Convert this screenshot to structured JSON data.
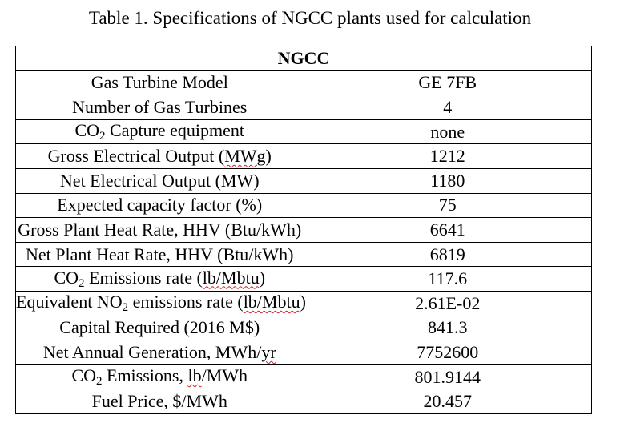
{
  "caption": "Table 1. Specifications of NGCC plants used for calculation",
  "table": {
    "header": "NGCC",
    "rows": [
      {
        "label": "Gas Turbine Model",
        "value": "GE 7FB"
      },
      {
        "label": "Number of Gas Turbines",
        "value": "4"
      },
      {
        "label_pre": "CO",
        "label_sub": "2",
        "label_post": " Capture equipment",
        "value": "none"
      },
      {
        "label_pre": "Gross Electrical Output (",
        "label_mark": "MWg",
        "label_post": ")",
        "value": "1212"
      },
      {
        "label": "Net Electrical Output (MW)",
        "value": "1180"
      },
      {
        "label": "Expected capacity factor (%)",
        "value": "75"
      },
      {
        "label": "Gross Plant Heat Rate, HHV (Btu/kWh)",
        "value": "6641"
      },
      {
        "label": "Net Plant Heat Rate, HHV (Btu/kWh)",
        "value": "6819"
      },
      {
        "label_pre": "CO",
        "label_sub": "2",
        "label_mid": " Emissions rate (",
        "label_mark": "lb/Mbtu",
        "label_post": ")",
        "value": "117.6"
      },
      {
        "label_pre": "Equivalent NO",
        "label_sub": "2",
        "label_mid": " emissions rate (",
        "label_mark": "lb/Mbtu",
        "label_post": ")",
        "value": "2.61E-02"
      },
      {
        "label": "Capital Required (2016 M$)",
        "value": "841.3"
      },
      {
        "label_pre": "Net Annual Generation, MWh/",
        "label_mark": "yr",
        "value": "7752600"
      },
      {
        "label_pre": "CO",
        "label_sub": "2",
        "label_mid": " Emissions, ",
        "label_mark": "lb",
        "label_post": "/MWh",
        "value": "801.9144"
      },
      {
        "label": "Fuel Price, $/MWh",
        "value": "20.457"
      }
    ]
  }
}
